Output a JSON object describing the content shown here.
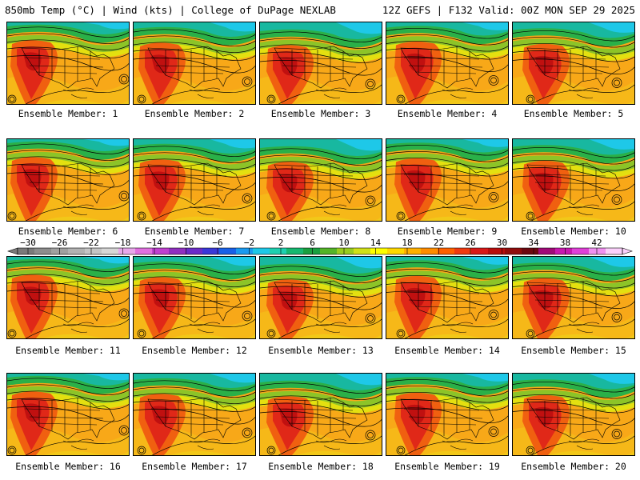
{
  "header": {
    "left": "850mb Temp (°C) | Wind (kts) | College of DuPage NEXLAB",
    "right": "12Z GEFS | F132 Valid: 00Z MON SEP 29 2025"
  },
  "member_prefix": "Ensemble Member: ",
  "members": [
    "1",
    "2",
    "3",
    "4",
    "5",
    "6",
    "7",
    "8",
    "9",
    "10",
    "11",
    "12",
    "13",
    "14",
    "15",
    "16",
    "17",
    "18",
    "19",
    "20"
  ],
  "colorbar": {
    "labels": [
      "−30",
      "−26",
      "−22",
      "−18",
      "−14",
      "−10",
      "−6",
      "−2",
      "2",
      "6",
      "10",
      "14",
      "18",
      "22",
      "26",
      "30",
      "34",
      "38",
      "42"
    ],
    "colors": [
      "#7a7a7a",
      "#8d8d8d",
      "#a0a0a0",
      "#b2b2b2",
      "#c4c4c4",
      "#d6d6d6",
      "#e8a8ea",
      "#e070e0",
      "#c040d0",
      "#9030c0",
      "#6a2cc8",
      "#3a38d8",
      "#1860e8",
      "#1a9af0",
      "#1ec8e8",
      "#1ed0b0",
      "#16b870",
      "#1aa040",
      "#54b428",
      "#98cc20",
      "#d0e018",
      "#ffff00",
      "#ffd800",
      "#ffb000",
      "#ff8c00",
      "#ff6000",
      "#f03a10",
      "#d81818",
      "#b80c0c",
      "#900c0c",
      "#6c0810",
      "#a00a78",
      "#c818b0",
      "#e040d8",
      "#f090f0",
      "#fbd0fb"
    ]
  }
}
